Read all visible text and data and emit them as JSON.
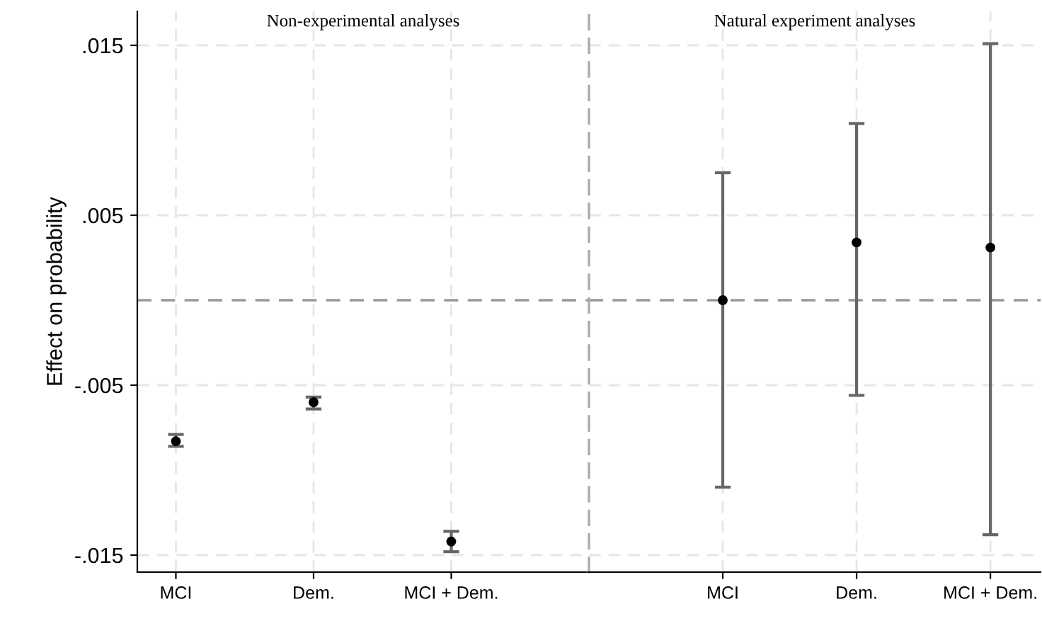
{
  "chart_data": [
    {
      "type": "scatter",
      "title": "Non-experimental analyses",
      "ylabel": "Effect on probability",
      "categories": [
        "MCI",
        "Dem.",
        "MCI + Dem."
      ],
      "series": [
        {
          "color": "#000000",
          "values": [
            -0.0083,
            -0.006,
            -0.0142
          ],
          "errors": [
            [
              -0.0086,
              -0.0079
            ],
            [
              -0.0064,
              -0.0057
            ],
            [
              -0.0148,
              -0.0136
            ]
          ]
        }
      ],
      "ylim": [
        -0.016,
        0.017
      ],
      "yticks": [
        {
          "value": 0.015,
          "label": ".015"
        },
        {
          "value": 0.005,
          "label": ".005"
        },
        {
          "value": -0.005,
          "label": "-.005"
        },
        {
          "value": -0.015,
          "label": "-.015"
        }
      ],
      "ref_lines": [
        {
          "axis": "y",
          "value": 0,
          "color": "#999999",
          "line_style": "dashed"
        }
      ],
      "grid": true,
      "marker": "circle"
    },
    {
      "type": "scatter",
      "title": "Natural experiment analyses",
      "categories": [
        "MCI",
        "Dem.",
        "MCI + Dem."
      ],
      "series": [
        {
          "color": "#000000",
          "values": [
            0.0,
            0.0034,
            0.0031
          ],
          "errors": [
            [
              -0.011,
              0.0075
            ],
            [
              -0.0056,
              0.0104
            ],
            [
              -0.0138,
              0.0151
            ]
          ]
        }
      ],
      "ylim": [
        -0.016,
        0.017
      ],
      "yticks": [
        {
          "value": 0.015,
          "label": null
        },
        {
          "value": 0.005,
          "label": null
        },
        {
          "value": -0.005,
          "label": null
        },
        {
          "value": -0.015,
          "label": null
        }
      ],
      "tick_labels": "x",
      "ref_lines": [
        {
          "axis": "y",
          "value": 0,
          "color": "#999999",
          "line_style": "dashed"
        }
      ],
      "grid": true,
      "marker": "circle"
    }
  ]
}
